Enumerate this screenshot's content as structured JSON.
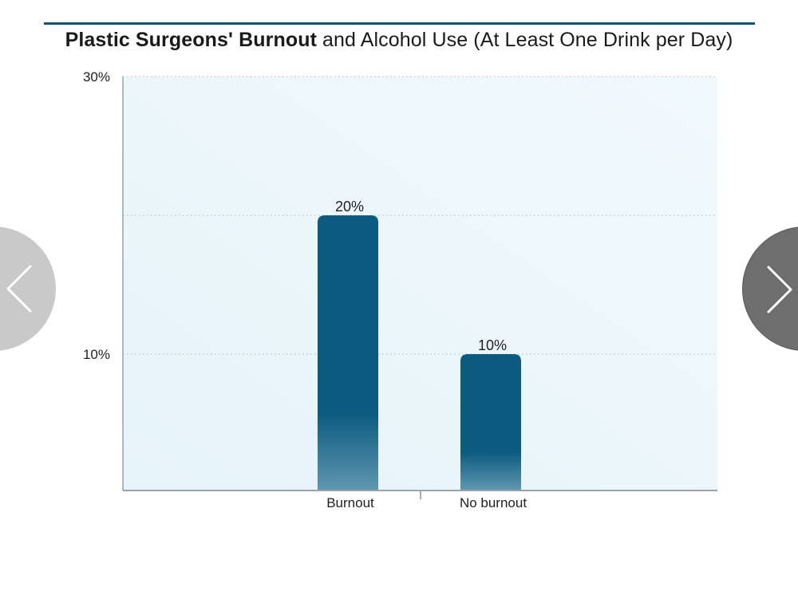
{
  "title": {
    "bold": "Plastic Surgeons' Burnout",
    "regular": " and Alcohol Use (At Least One Drink per Day)"
  },
  "colors": {
    "rule": "#0f5274",
    "plot_bg": "#eaf6fb",
    "bar_top": "#0b5a80",
    "bar_bottom": "#5f97b0",
    "grid": "#b9c4c9",
    "axis": "#9aa3a7"
  },
  "nav": {
    "prev_icon": "chevron-left-icon",
    "next_icon": "chevron-right-icon"
  },
  "chart_data": {
    "type": "bar",
    "categories": [
      "Burnout",
      "No burnout"
    ],
    "values": [
      20,
      10
    ],
    "value_labels": [
      "20%",
      "10%"
    ],
    "y_tick_values": [
      10,
      30
    ],
    "y_tick_labels": [
      "10%",
      "30%"
    ],
    "gridlines": [
      10,
      20,
      30
    ],
    "ylim": [
      0,
      30
    ],
    "title": "Plastic Surgeons' Burnout and Alcohol Use (At Least One Drink per Day)",
    "xlabel": "",
    "ylabel": "",
    "grid": true,
    "legend": "none"
  }
}
